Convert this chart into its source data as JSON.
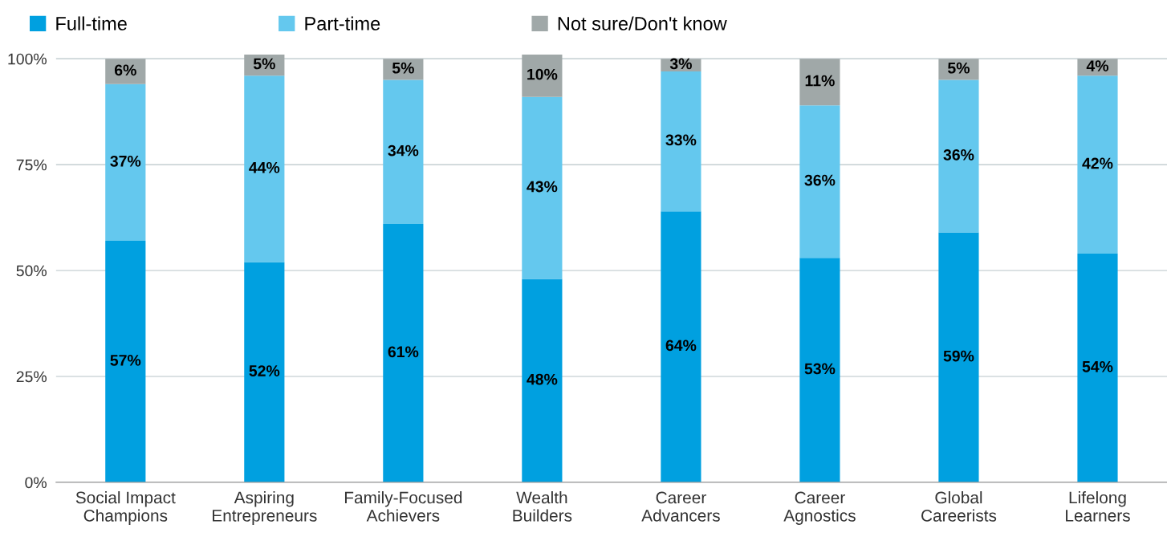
{
  "chart_data": {
    "type": "bar",
    "stacked": true,
    "grid": "y",
    "legend": "top left",
    "categories": [
      "Social Impact\nChampions",
      "Aspiring\nEntrepreneurs",
      "Family-Focused\nAchievers",
      "Wealth\nBuilders",
      "Career\nAdvancers",
      "Career\nAgnostics",
      "Global\nCareerists",
      "Lifelong\nLearners"
    ],
    "series": [
      {
        "name": "Full-time",
        "color": "#00a0e0",
        "values": [
          57,
          52,
          61,
          48,
          64,
          53,
          59,
          54
        ],
        "value_labels": [
          "57%",
          "52%",
          "61%",
          "48%",
          "64%",
          "53%",
          "59%",
          "54%"
        ]
      },
      {
        "name": "Part-time",
        "color": "#64c8ee",
        "values": [
          37,
          44,
          34,
          43,
          33,
          36,
          36,
          42
        ],
        "value_labels": [
          "37%",
          "44%",
          "34%",
          "43%",
          "33%",
          "36%",
          "36%",
          "42%"
        ]
      },
      {
        "name": "Not sure/Don't know",
        "color": "#a0a8a8",
        "values": [
          6,
          5,
          5,
          10,
          3,
          11,
          5,
          4
        ],
        "value_labels": [
          "6%",
          "5%",
          "5%",
          "10%",
          "3%",
          "11%",
          "5%",
          "4%"
        ]
      }
    ],
    "ylim": [
      0,
      101
    ],
    "yticks": [
      {
        "value": 0,
        "label": "0%"
      },
      {
        "value": 25,
        "label": "25%"
      },
      {
        "value": 50,
        "label": "50%"
      },
      {
        "value": 75,
        "label": "75%"
      },
      {
        "value": 100,
        "label": "100%"
      }
    ]
  }
}
